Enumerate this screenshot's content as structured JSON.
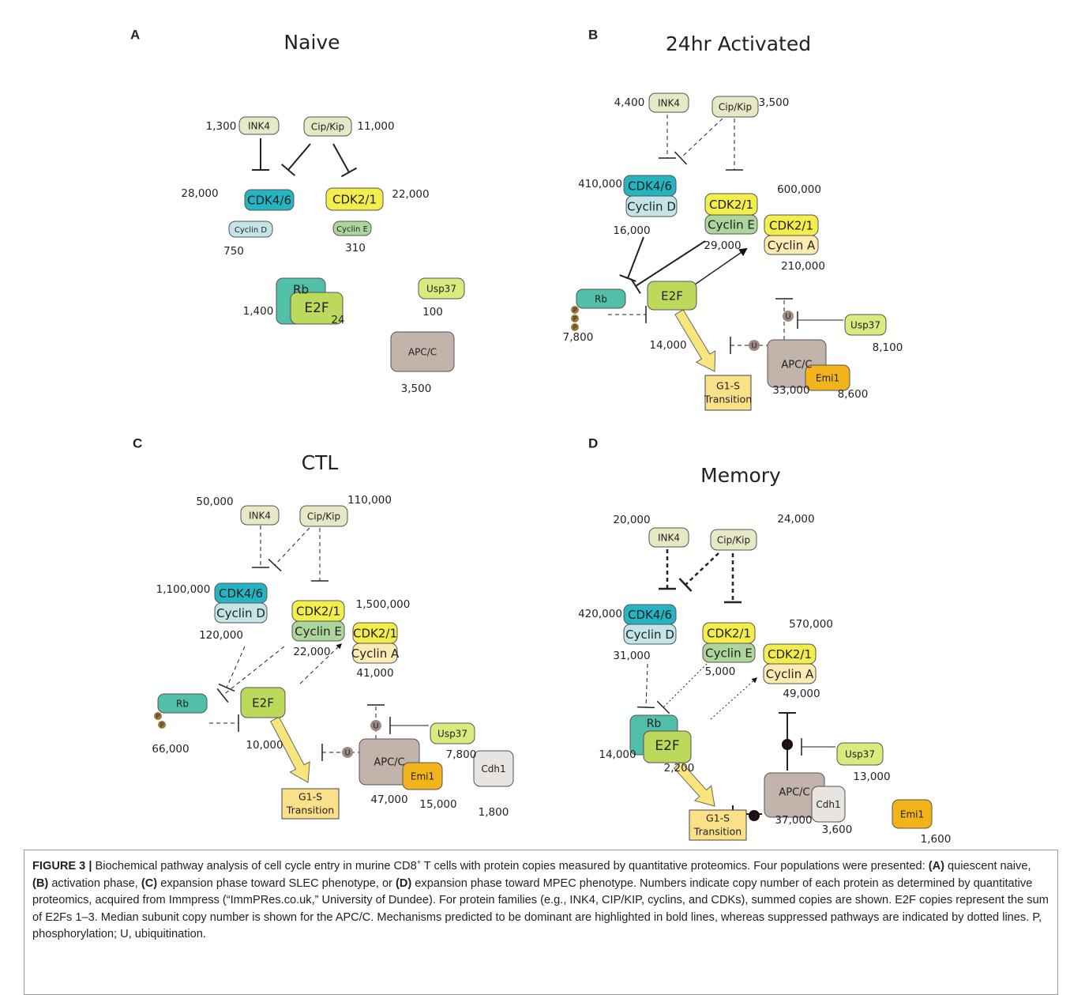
{
  "panels": [
    {
      "letter": "A",
      "title": "Naive",
      "proteins": [
        "INK4",
        "Cip/Kip",
        "CDK4/6",
        "Cyclin D",
        "CDK2/1",
        "Cyclin E",
        "Rb",
        "E2F",
        "Usp37",
        "APC/C"
      ],
      "copies": [
        "1,300",
        "11,000",
        "28,000",
        "750",
        "22,000",
        "310",
        "1,400",
        "24",
        "100",
        "3,500"
      ]
    },
    {
      "letter": "B",
      "title": "24hr Activated",
      "proteins": [
        "INK4",
        "Cip/Kip",
        "CDK4/6",
        "Cyclin D",
        "CDK2/1",
        "Cyclin E",
        "CDK2/1",
        "Cyclin A",
        "Rb",
        "E2F",
        "Usp37",
        "APC/C",
        "Emi1"
      ],
      "copies": [
        "4,400",
        "3,500",
        "410,000",
        "16,000",
        "600,000",
        "29,000",
        "210,000",
        "7,800",
        "14,000",
        "8,100",
        "33,000",
        "8,600"
      ],
      "transition": [
        "G1-S",
        "Transition"
      ]
    },
    {
      "letter": "C",
      "title": "CTL",
      "proteins": [
        "INK4",
        "Cip/Kip",
        "CDK4/6",
        "Cyclin D",
        "CDK2/1",
        "Cyclin E",
        "CDK2/1",
        "Cyclin A",
        "Rb",
        "E2F",
        "Usp37",
        "APC/C",
        "Emi1",
        "Cdh1"
      ],
      "copies": [
        "50,000",
        "110,000",
        "1,100,000",
        "120,000",
        "1,500,000",
        "22,000",
        "41,000",
        "66,000",
        "10,000",
        "7,800",
        "47,000",
        "15,000",
        "1,800"
      ],
      "transition": [
        "G1-S",
        "Transition"
      ]
    },
    {
      "letter": "D",
      "title": "Memory",
      "proteins": [
        "INK4",
        "Cip/Kip",
        "CDK4/6",
        "Cyclin D",
        "CDK2/1",
        "Cyclin E",
        "CDK2/1",
        "Cyclin A",
        "Rb",
        "E2F",
        "Usp37",
        "APC/C",
        "Cdh1",
        "Emi1"
      ],
      "copies": [
        "20,000",
        "24,000",
        "420,000",
        "31,000",
        "570,000",
        "5,000",
        "49,000",
        "14,000",
        "2,200",
        "13,000",
        "37,000",
        "3,600",
        "1,600"
      ],
      "transition": [
        "G1-S",
        "Transition"
      ]
    }
  ],
  "symbols": {
    "phospho": "P",
    "ubiquitin": "U"
  },
  "caption": {
    "parts": [
      "FIGURE 3 |",
      " Biochemical pathway analysis of cell cycle entry in murine CD8",
      "+",
      " T cells with protein copies measured by quantitative proteomics. Four populations were presented: ",
      "(A)",
      " quiescent naive, ",
      "(B)",
      " activation phase, ",
      "(C)",
      " expansion phase toward SLEC phenotype, or ",
      "(D)",
      " expansion phase toward MPEC phenotype. Numbers indicate copy number of each protein as determined by quantitative proteomics, acquired from Immpress (“ImmPRes.co.uk,” University of Dundee). For protein families (e.g., INK4, CIP/KIP, cyclins, and CDKs), summed copies are shown. E2F copies represent the sum of E2Fs 1–3. Median subunit copy number is shown for the APC/C. Mechanisms predicted to be dominant are highlighted in bold lines, whereas suppressed pathways are indicated by dotted lines. P, phosphorylation; U, ubiquitination."
    ]
  }
}
